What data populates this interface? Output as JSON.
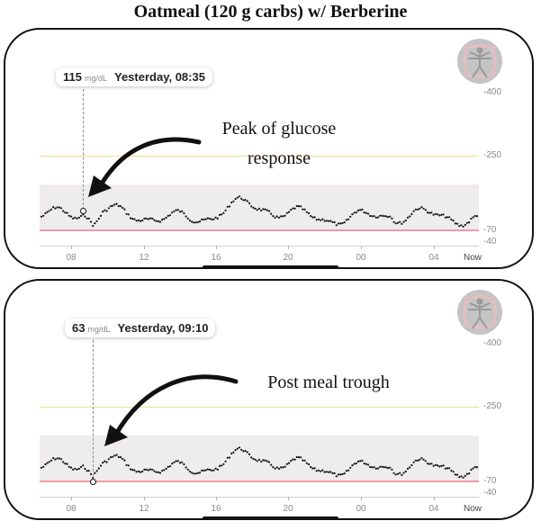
{
  "page": {
    "title": "Oatmeal (120 g carbs) w/ Berberine"
  },
  "panels": [
    {
      "callout": {
        "value": "115",
        "unit": "mg/dL",
        "time": "Yesterday, 08:35"
      },
      "annotation": {
        "line1": "Peak of glucose",
        "line2": "response"
      },
      "axis": {
        "y_labels": [
          "400",
          "250",
          "70",
          "40"
        ],
        "x_labels": [
          "08",
          "12",
          "16",
          "20",
          "00",
          "04",
          "Now"
        ]
      }
    },
    {
      "callout": {
        "value": "63",
        "unit": "mg/dL",
        "time": "Yesterday, 09:10"
      },
      "annotation": {
        "line1": "Post meal trough",
        "line2": ""
      },
      "axis": {
        "y_labels": [
          "400",
          "250",
          "70",
          "40"
        ],
        "x_labels": [
          "08",
          "12",
          "16",
          "20",
          "00",
          "04",
          "Now"
        ]
      }
    }
  ],
  "colors": {
    "target_band": "#eeeced",
    "high_line": "#efe189",
    "low_line": "#f19aa5",
    "dots": "#111111"
  },
  "icons": [
    "app-logo-icon",
    "arrow-icon"
  ]
}
